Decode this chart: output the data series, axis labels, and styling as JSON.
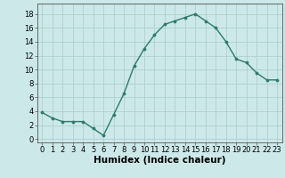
{
  "x": [
    0,
    1,
    2,
    3,
    4,
    5,
    6,
    7,
    8,
    9,
    10,
    11,
    12,
    13,
    14,
    15,
    16,
    17,
    18,
    19,
    20,
    21,
    22,
    23
  ],
  "y": [
    3.8,
    3.0,
    2.5,
    2.5,
    2.5,
    1.5,
    0.5,
    3.5,
    6.5,
    10.5,
    13.0,
    15.0,
    16.5,
    17.0,
    17.5,
    18.0,
    17.0,
    16.0,
    14.0,
    11.5,
    11.0,
    9.5,
    8.5,
    8.5
  ],
  "xlabel": "Humidex (Indice chaleur)",
  "ylim": [
    -0.5,
    19.5
  ],
  "xlim": [
    -0.5,
    23.5
  ],
  "yticks": [
    0,
    2,
    4,
    6,
    8,
    10,
    12,
    14,
    16,
    18
  ],
  "xticks": [
    0,
    1,
    2,
    3,
    4,
    5,
    6,
    7,
    8,
    9,
    10,
    11,
    12,
    13,
    14,
    15,
    16,
    17,
    18,
    19,
    20,
    21,
    22,
    23
  ],
  "line_color": "#2d7a6e",
  "marker_color": "#2d7a6e",
  "bg_color": "#cce8e8",
  "grid_color": "#b0d0d0",
  "xlabel_fontsize": 7.5,
  "tick_fontsize": 6
}
